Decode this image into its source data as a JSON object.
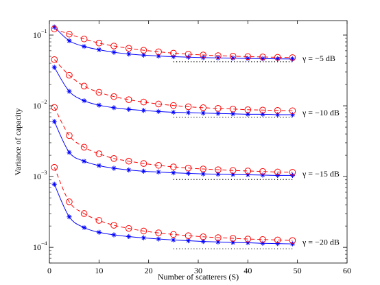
{
  "chart_data": {
    "type": "line",
    "title": "",
    "xlabel": "Number of scatterers (S)",
    "ylabel": "Variance of capacity",
    "xlim": [
      0,
      60
    ],
    "ylim": [
      6e-05,
      0.16
    ],
    "yscale": "log",
    "grid": false,
    "xticks": [
      0,
      10,
      20,
      30,
      40,
      50,
      60
    ],
    "xtick_labels": [
      "0",
      "10",
      "20",
      "30",
      "40",
      "50",
      "60"
    ],
    "yticks": [
      0.0001,
      0.001,
      0.01,
      0.1
    ],
    "ytick_labels": [
      {
        "base": "10",
        "exp": "−4"
      },
      {
        "base": "10",
        "exp": "−3"
      },
      {
        "base": "10",
        "exp": "−2"
      },
      {
        "base": "10",
        "exp": "−1"
      }
    ],
    "x_markers": [
      1,
      4,
      7,
      10,
      13,
      16,
      19,
      22,
      25,
      28,
      31,
      34,
      37,
      40,
      43,
      46,
      49
    ],
    "x_dotted": [
      25,
      49
    ],
    "colors": {
      "circle_series": "#ff0000",
      "star_series": "#0000ff",
      "asymptote": "#000000"
    },
    "groups": [
      {
        "label": "γ = −5 dB",
        "circle": [
          0.122,
          0.103,
          0.088,
          0.077,
          0.07,
          0.065,
          0.061,
          0.058,
          0.0555,
          0.0537,
          0.0523,
          0.0512,
          0.0503,
          0.0496,
          0.049,
          0.0485,
          0.048
        ],
        "star": [
          0.13,
          0.083,
          0.069,
          0.062,
          0.057,
          0.054,
          0.052,
          0.0505,
          0.0495,
          0.0487,
          0.048,
          0.0475,
          0.0471,
          0.0467,
          0.0464,
          0.0461,
          0.0459
        ],
        "asymptote": 0.042
      },
      {
        "label": "γ = −10 dB",
        "circle": [
          0.045,
          0.027,
          0.019,
          0.0155,
          0.0135,
          0.0122,
          0.0113,
          0.0106,
          0.0101,
          0.0097,
          0.0094,
          0.0092,
          0.009,
          0.0088,
          0.0087,
          0.0086,
          0.0085
        ],
        "star": [
          0.035,
          0.016,
          0.0118,
          0.0102,
          0.0094,
          0.0089,
          0.0086,
          0.0083,
          0.0081,
          0.008,
          0.0079,
          0.0078,
          0.0077,
          0.0076,
          0.0076,
          0.0075,
          0.0075
        ],
        "asymptote": 0.0069
      },
      {
        "label": "γ = −15 dB",
        "circle": [
          0.0095,
          0.0038,
          0.0026,
          0.0021,
          0.0018,
          0.00165,
          0.00153,
          0.00144,
          0.00137,
          0.00132,
          0.00128,
          0.00125,
          0.00122,
          0.0012,
          0.00118,
          0.00116,
          0.00115
        ],
        "star": [
          0.006,
          0.0022,
          0.00165,
          0.00143,
          0.00131,
          0.00124,
          0.00119,
          0.00116,
          0.00113,
          0.00111,
          0.00109,
          0.00108,
          0.00107,
          0.00106,
          0.00105,
          0.00104,
          0.00104
        ],
        "asymptote": 0.00091
      },
      {
        "label": "γ = −20 dB",
        "circle": [
          0.00135,
          0.00044,
          0.0003,
          0.00024,
          0.000205,
          0.000185,
          0.00017,
          0.00016,
          0.000152,
          0.000146,
          0.000141,
          0.000137,
          0.000134,
          0.000131,
          0.000129,
          0.000127,
          0.000125
        ],
        "star": [
          0.00078,
          0.00027,
          0.00019,
          0.000163,
          0.00015,
          0.000142,
          0.000136,
          0.000131,
          0.000127,
          0.000124,
          0.000121,
          0.000119,
          0.000117,
          0.000116,
          0.000114,
          0.000113,
          0.000112
        ],
        "asymptote": 9.5e-05
      }
    ]
  }
}
